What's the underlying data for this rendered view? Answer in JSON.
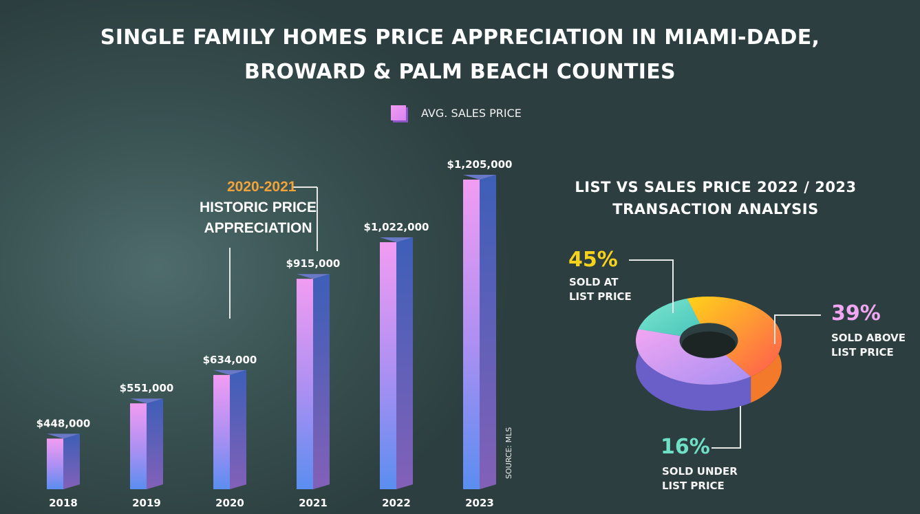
{
  "title_line1": "SINGLE FAMILY HOMES PRICE APPRECIATION IN MIAMI-DADE,",
  "title_line2": "BROWARD & PALM BEACH COUNTIES",
  "legend_label": "AVG. SALES PRICE",
  "annotation": {
    "years": "2020-2021",
    "line1": "HISTORIC PRICE",
    "line2": "APPRECIATION"
  },
  "source": "SOURCE: MLS",
  "colors": {
    "bar_pink": "#f29cf2",
    "bar_blue": "#5a8ef0",
    "bar_side": "#3f5fb8",
    "accent_orange": "#f2a33a",
    "pct_yellow": "#f7d21c",
    "pct_pink": "#f0a6f0",
    "pct_teal": "#6fe0c6"
  },
  "chart_data": [
    {
      "type": "bar",
      "title": "SINGLE FAMILY HOMES PRICE APPRECIATION IN MIAMI-DADE, BROWARD & PALM BEACH COUNTIES",
      "series": [
        {
          "name": "AVG. SALES PRICE",
          "values": [
            448000,
            551000,
            634000,
            915000,
            1022000,
            1205000
          ]
        }
      ],
      "categories": [
        "2018",
        "2019",
        "2020",
        "2021",
        "2022",
        "2023"
      ],
      "labels": [
        "$448,000",
        "$551,000",
        "$634,000",
        "$915,000",
        "$1,022,000",
        "$1,205,000"
      ],
      "ylim": [
        300000,
        1205000
      ],
      "xlabel": "",
      "ylabel": ""
    },
    {
      "type": "pie",
      "title_line1": "LIST VS SALES PRICE 2022 / 2023",
      "title_line2": "TRANSACTION ANALYSIS",
      "slices": [
        {
          "name": "SOLD AT LIST PRICE",
          "value": 45,
          "pct_label": "45%",
          "label_line1": "SOLD AT",
          "label_line2": "LIST PRICE"
        },
        {
          "name": "SOLD ABOVE LIST PRICE",
          "value": 39,
          "pct_label": "39%",
          "label_line1": "SOLD ABOVE",
          "label_line2": "LIST PRICE"
        },
        {
          "name": "SOLD UNDER LIST PRICE",
          "value": 16,
          "pct_label": "16%",
          "label_line1": "SOLD UNDER",
          "label_line2": "LIST PRICE"
        }
      ]
    }
  ]
}
